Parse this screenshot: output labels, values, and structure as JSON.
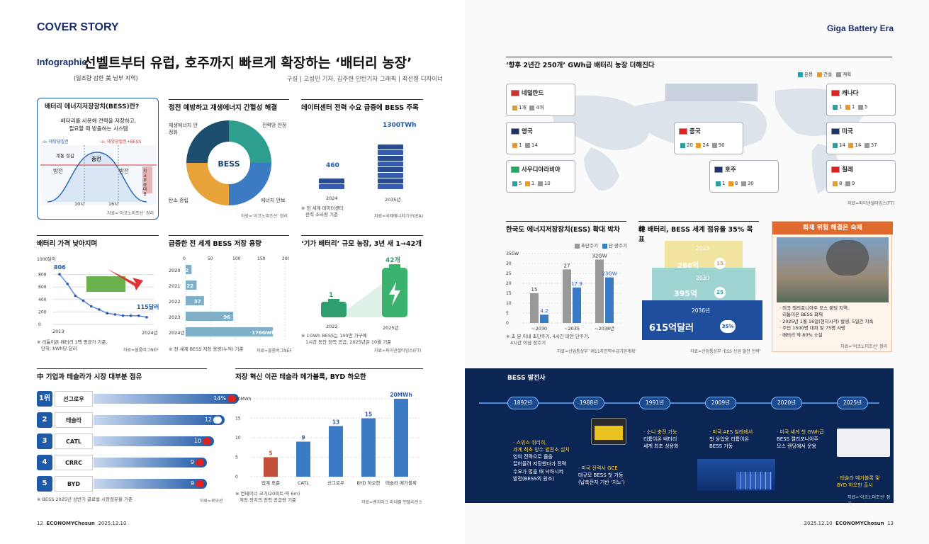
{
  "header": {
    "cover": "COVER STORY",
    "era": "Giga Battery Era",
    "infographic": "Infographic",
    "title": "선벨트부터 유럽, 호주까지 빠르게 확장하는 ‘배터리 농장’",
    "subtitle": "(일조량 강한 美 남부 지역)",
    "credit": "구성 | 고성민 기자, 김주현 인턴기자   그래픽 | 최선정 디자이너"
  },
  "bess_intro": {
    "title": "배터리 에너지저장장치(BESS)란?",
    "desc1": "배터리를 사용해 전력을 저장하고,",
    "desc2": "필요할 때 방출하는 시스템",
    "legend_a": "태양광발전",
    "legend_b": "태양광발전+BESS",
    "lab_charge": "충전",
    "lab_cut": "계통 절감",
    "lab_discharge1": "방전",
    "lab_discharge2": "방전",
    "lab_peak": "피크부하대응",
    "t1": "10시",
    "t2": "16시",
    "source": "자료=‘이코노미조선’ 정리"
  },
  "bess_role": {
    "title": "정전 예방하고 재생에너지 간헐성 해결",
    "center": "BESS",
    "q1": "재생에너지 안정화",
    "q2": "전력망 안정",
    "q3": "탄소 중립",
    "q4": "에너지 안보",
    "source": "자료=‘이코노미조선’ 정리"
  },
  "datacenter": {
    "title": "데이터센터 전력 수요 급증에 BESS 주목",
    "v1": "460",
    "v2": "1300TWh",
    "y1": "2024",
    "y2": "2035년",
    "note1": "※ 전 세계 데이터센터",
    "note2": "전력 소비량 기준",
    "source": "자료=국제에너지기구(IEA)"
  },
  "price": {
    "title": "배터리 가격 낮아지며",
    "unit": "1000달러",
    "ticks": [
      "800",
      "600",
      "400",
      "200",
      "0"
    ],
    "start_label": "806",
    "end_label": "115달러",
    "x1": "2013",
    "x2": "2024년",
    "note1": "※ 리튬이온 배터리 1팩 평균가 기준,",
    "note2": "단위: kWh당 달러",
    "source": "자료=블룸버그NEF"
  },
  "capacity": {
    "title": "급증한 전 세계 BESS 저장 용량",
    "axis": [
      "0",
      "50",
      "100",
      "150",
      "200GWh"
    ],
    "rows": [
      {
        "year": "2020",
        "label": "12"
      },
      {
        "year": "2021",
        "label": "22"
      },
      {
        "year": "2022",
        "label": "37"
      },
      {
        "year": "2023",
        "label": "96"
      },
      {
        "year": "2024년",
        "label": "176GWh"
      }
    ],
    "note": "※ 전 세계 BESS 저장 용량(누적) 기준",
    "source": "자료=블룸버그NEF"
  },
  "giga": {
    "title": "‘기가 배터리’ 규모 농장, 3년 새 1→42개",
    "v1": "1",
    "v2": "42개",
    "y1": "2022",
    "y2": "2025년",
    "note1": "※ 1GWh BESS는 100만 가구에",
    "note2": "1시간 동안 전력 공급, 2025년은 10월 기준",
    "source": "자료=파이낸셜타임스(FT)"
  },
  "share": {
    "title": "中 기업과 테슬라가 시장 대부분 점유",
    "rows": [
      {
        "rank": "1위",
        "name": "선그로우",
        "value": "14%"
      },
      {
        "rank": "2",
        "name": "테슬라",
        "value": "12"
      },
      {
        "rank": "3",
        "name": "CATL",
        "value": "10"
      },
      {
        "rank": "4",
        "name": "CRRC",
        "value": "9"
      },
      {
        "rank": "5",
        "name": "BYD",
        "value": "9"
      }
    ],
    "note": "※ BESS 2025년 상반기 글로벌 시장점유율 기준",
    "source": "자료=로모션"
  },
  "density": {
    "title": "저장 혁신 이끈 테슬라 메가블록, BYD 하오한",
    "ticks": [
      "20MWh",
      "15",
      "10",
      "5",
      "0"
    ],
    "bars": [
      {
        "name": "업계 표준",
        "value": 5,
        "label": "5"
      },
      {
        "name": "CATL",
        "value": 9,
        "label": "9"
      },
      {
        "name": "선그로우",
        "value": 13,
        "label": "13"
      },
      {
        "name": "BYD 하오한",
        "value": 15,
        "label": "15"
      },
      {
        "name": "테슬라 메가블록",
        "value": 20,
        "label": "20MWh"
      }
    ],
    "note1": "※ 컨테이너 크기(20피트·약 6m)",
    "note2": "저장 장치의 전력 공급량 기준",
    "source": "자료=벤치마크 미네랄 인텔리전스"
  },
  "map": {
    "title": "‘향후 2년간 250개’ GWh급 배터리 농장 더해진다",
    "legend": [
      "운용",
      "건설",
      "계획"
    ],
    "source": "자료=파이낸셜타임스(FT)",
    "countries": [
      {
        "name": "네덜란드",
        "vals": [
          "1개",
          "4개"
        ]
      },
      {
        "name": "영국",
        "vals": [
          "1",
          "14"
        ]
      },
      {
        "name": "사우디아라비아",
        "vals": [
          "5",
          "1",
          "10"
        ]
      },
      {
        "name": "중국",
        "vals": [
          "20",
          "24",
          "90"
        ]
      },
      {
        "name": "호주",
        "vals": [
          "1",
          "8",
          "30"
        ]
      },
      {
        "name": "캐나다",
        "vals": [
          "1",
          "1",
          "5"
        ]
      },
      {
        "name": "미국",
        "vals": [
          "14",
          "14",
          "37"
        ]
      },
      {
        "name": "칠레",
        "vals": [
          "8",
          "9"
        ]
      }
    ]
  },
  "ess_korea": {
    "title": "한국도 에너지저장장치(ESS) 확대 박차",
    "legend_a": "초단주기",
    "legend_b": "단·장주기",
    "ticks": [
      "35GW",
      "30",
      "25",
      "20",
      "15",
      "10",
      "5",
      "0"
    ],
    "groups": [
      {
        "x": "~2030",
        "a": 15,
        "b": 4.2
      },
      {
        "x": "~2035",
        "a": 27,
        "b": 17.9
      },
      {
        "x": "~2038년",
        "a": 32,
        "b": 23
      }
    ],
    "a_labels": [
      "15",
      "27",
      "32GW"
    ],
    "b_labels": [
      "4.2",
      "17.9",
      "23GW"
    ],
    "note1": "※ 초 분 이내 초단주기, 4시간 미만 단주기,",
    "note2": "4시간 이상 장주기",
    "source": "자료=산업통상부 ‘제11차전력수급기본계획’"
  },
  "korea_share": {
    "title": "韓 배터리, BESS 세계 점유율 35% 목표",
    "rows": [
      {
        "year": "2025",
        "value": "266억",
        "pct": "15"
      },
      {
        "year": "2030",
        "value": "395억",
        "pct": "25"
      },
      {
        "year": "2036년",
        "value": "615억달러",
        "pct": "35%"
      }
    ],
    "source": "자료=산업통상부 ‘ESS 산업 발전 전략’"
  },
  "fire": {
    "title": "화재 위험 해결은 숙제",
    "lines": [
      "· 미국 캘리포니아주 모스 랜딩 지역,",
      "  리튬이온 BESS 화재",
      "· 2025년 1월 16일(현지시각) 발생, 5일간 지속",
      "· 주민 1500명 대피 및 75명 사망",
      "· 배터리 약 80% 소실"
    ],
    "source": "자료=‘이코노미조선’ 정리"
  },
  "history": {
    "title": "BESS 발전사",
    "years": [
      "1892년",
      "1988년",
      "1991년",
      "2009년",
      "2020년",
      "2025년"
    ],
    "t1": [
      "· 스위스 취리히,",
      "세계 최초 양수 발전소 설치",
      "잉여 전력으로 물을",
      "끌어올려 저장했다가 전력",
      "수요가 많을 때 낙하시켜",
      "발전(BESS의 원조)"
    ],
    "t2": [
      "· 미국 전력사 GCE",
      "대규모 BESS 첫 가동",
      "(납축전지 기반 ‘치노’)"
    ],
    "t3": [
      "· 소니 충전 가능",
      "리튬이온 배터리",
      "세계 최초 상용화"
    ],
    "t4": [
      "· 미국 AES 칠레에서",
      "첫 상업용 리튬이온",
      "BESS 가동"
    ],
    "t5": [
      "· 미국 세계 첫 GWh급",
      "BESS 캘리포니아주",
      "모스 랜딩에서 운용"
    ],
    "t6": [
      "· 테슬라 메가블록 및",
      "BYD 하오한 출시"
    ],
    "source": "자료=‘이코노미조선’ 정리"
  },
  "footer": {
    "left_page": "12",
    "left_brand": "ECONOMYChosun",
    "left_date": "2025.12.10",
    "right_date": "2025.12.10",
    "right_brand": "ECONOMYChosun",
    "right_page": "13"
  }
}
